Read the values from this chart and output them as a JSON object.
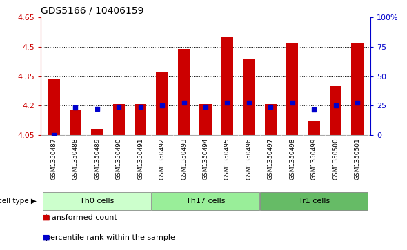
{
  "title": "GDS5166 / 10406159",
  "samples": [
    "GSM1350487",
    "GSM1350488",
    "GSM1350489",
    "GSM1350490",
    "GSM1350491",
    "GSM1350492",
    "GSM1350493",
    "GSM1350494",
    "GSM1350495",
    "GSM1350496",
    "GSM1350497",
    "GSM1350498",
    "GSM1350499",
    "GSM1350500",
    "GSM1350501"
  ],
  "bar_values": [
    4.34,
    4.18,
    4.08,
    4.21,
    4.21,
    4.37,
    4.49,
    4.21,
    4.55,
    4.44,
    4.21,
    4.52,
    4.12,
    4.3,
    4.52
  ],
  "blue_values": [
    4.05,
    4.19,
    4.185,
    4.195,
    4.195,
    4.2,
    4.215,
    4.195,
    4.215,
    4.215,
    4.195,
    4.215,
    4.18,
    4.2,
    4.215
  ],
  "cell_groups": [
    {
      "label": "Th0 cells",
      "start": 0,
      "end": 4,
      "color": "#ccffcc"
    },
    {
      "label": "Th17 cells",
      "start": 5,
      "end": 9,
      "color": "#99ee99"
    },
    {
      "label": "Tr1 cells",
      "start": 10,
      "end": 14,
      "color": "#66bb66"
    }
  ],
  "ylim": [
    4.05,
    4.65
  ],
  "yticks": [
    4.05,
    4.2,
    4.35,
    4.5,
    4.65
  ],
  "ytick_labels": [
    "4.05",
    "4.2",
    "4.35",
    "4.5",
    "4.65"
  ],
  "right_yticks": [
    0,
    25,
    50,
    75,
    100
  ],
  "right_ytick_labels": [
    "0",
    "25",
    "50",
    "75",
    "100%"
  ],
  "hgrid_lines": [
    4.2,
    4.35,
    4.5
  ],
  "bar_color": "#cc0000",
  "blue_color": "#0000cc",
  "axis_color_left": "#cc0000",
  "axis_color_right": "#0000cc",
  "sample_bg_color": "#cccccc",
  "plot_bg_color": "#ffffff"
}
